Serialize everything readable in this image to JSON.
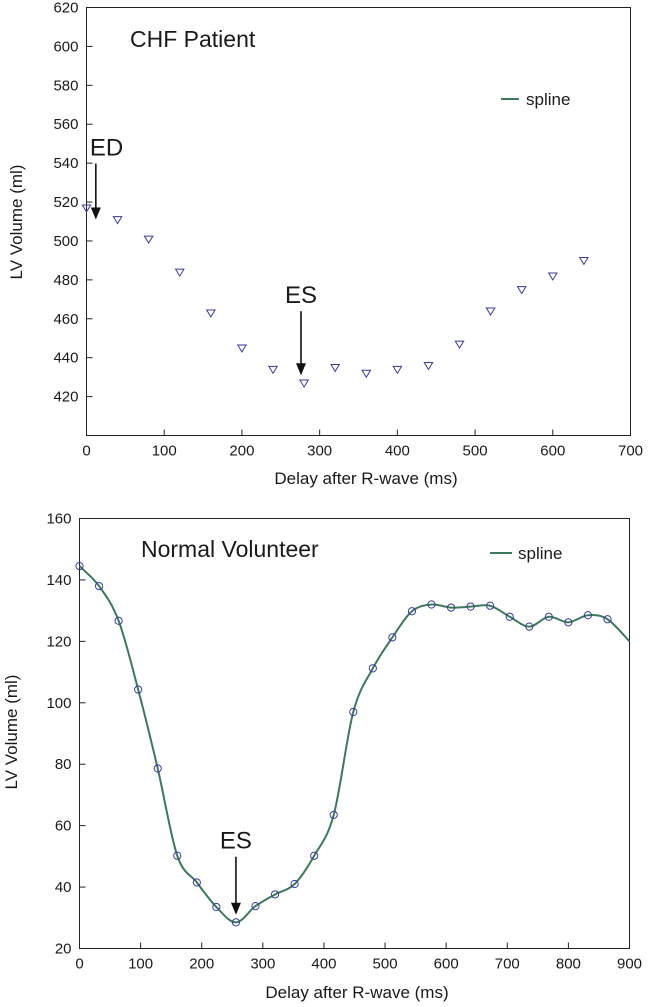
{
  "chart_data": [
    {
      "type": "scatter",
      "title": "CHF Patient",
      "xlabel": "Delay after R-wave (ms)",
      "ylabel": "LV Volume (ml)",
      "xlim": [
        0,
        700
      ],
      "ylim": [
        400,
        620
      ],
      "xticks": [
        0,
        100,
        200,
        300,
        400,
        500,
        600,
        700
      ],
      "yticks": [
        420,
        440,
        460,
        480,
        500,
        520,
        540,
        560,
        580,
        600,
        620
      ],
      "xtick_labels": [
        "0",
        "100",
        "200",
        "300",
        "400",
        "500",
        "600",
        "700"
      ],
      "ytick_labels": [
        "420",
        "440",
        "460",
        "480",
        "500",
        "520",
        "540",
        "560",
        "580",
        "600",
        "620"
      ],
      "legend": {
        "label": "spline",
        "color": "#3b7a5a",
        "placement": "top-right"
      },
      "series": [
        {
          "marker": "triangle-down",
          "color": "#3a3aa0",
          "x": [
            0,
            40,
            80,
            120,
            160,
            200,
            240,
            280,
            320,
            360,
            400,
            440,
            480,
            520,
            560,
            600,
            640
          ],
          "y": [
            517,
            511,
            501,
            484,
            463,
            445,
            434,
            427,
            435,
            432,
            434,
            436,
            447,
            464,
            475,
            482,
            490
          ]
        }
      ],
      "annotations": [
        {
          "text": "ED",
          "x": 12,
          "y": 511
        },
        {
          "text": "ES",
          "x": 276,
          "y": 431
        }
      ]
    },
    {
      "type": "line",
      "title": "Normal Volunteer",
      "xlabel": "Delay after R-wave (ms)",
      "ylabel": "LV Volume (ml)",
      "xlim": [
        0,
        900
      ],
      "ylim": [
        20,
        160
      ],
      "xticks": [
        0,
        100,
        200,
        300,
        400,
        500,
        600,
        700,
        800,
        900
      ],
      "yticks": [
        20,
        40,
        60,
        80,
        100,
        120,
        140,
        160
      ],
      "xtick_labels": [
        "0",
        "100",
        "200",
        "300",
        "400",
        "500",
        "600",
        "700",
        "800",
        "900"
      ],
      "ytick_labels": [
        "20",
        "40",
        "60",
        "80",
        "100",
        "120",
        "140",
        "160"
      ],
      "legend": {
        "label": "spline",
        "color": "#3b7a5a",
        "placement": "top-right"
      },
      "series": [
        {
          "marker": "circle",
          "marker_color": "#3a3aa0",
          "line_color": "#3b7a5a",
          "x": [
            0,
            32,
            64,
            96,
            128,
            160,
            192,
            224,
            256,
            288,
            320,
            352,
            384,
            416,
            448,
            480,
            512,
            544,
            576,
            608,
            640,
            672,
            704,
            736,
            768,
            800,
            832,
            864
          ],
          "y": [
            144.5,
            138,
            126.7,
            104.3,
            78.6,
            50.2,
            41.5,
            33.5,
            28.5,
            33.8,
            37.6,
            41,
            50.2,
            63.5,
            97,
            111.2,
            121.3,
            129.8,
            132,
            131,
            131.3,
            131.6,
            128,
            124.8,
            128,
            126.2,
            128.5,
            127.2
          ]
        }
      ],
      "spline_end": {
        "x": 900,
        "y": 120
      },
      "annotations": [
        {
          "text": "ES",
          "x": 256,
          "y": 31
        }
      ]
    }
  ]
}
